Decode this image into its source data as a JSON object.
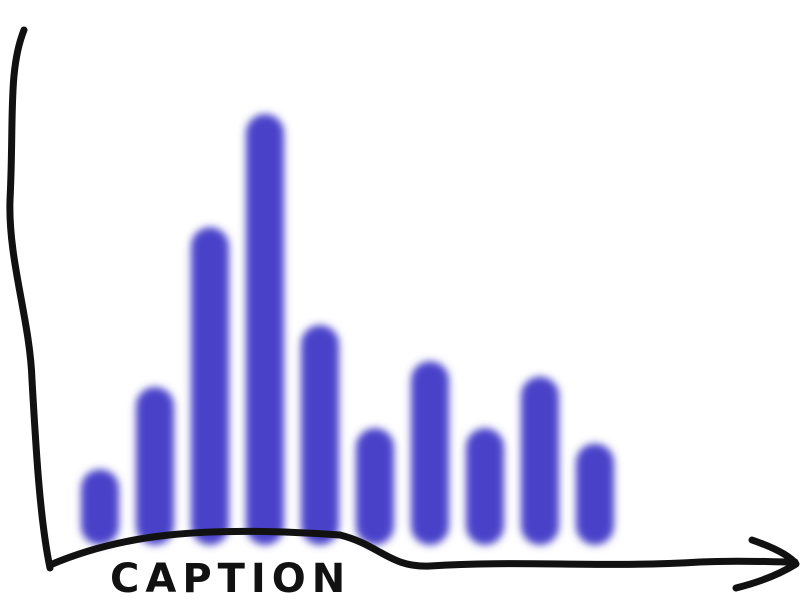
{
  "chart_data": {
    "type": "bar",
    "x_label": "CAPTION",
    "categories": [
      null,
      null,
      null,
      null,
      null,
      null,
      null,
      null,
      null,
      null
    ],
    "values": [
      1.1,
      2.7,
      5.8,
      8.0,
      3.9,
      1.9,
      3.2,
      1.9,
      2.9,
      1.6
    ],
    "color": "#4a43c9",
    "ylim": [
      0,
      10
    ]
  }
}
